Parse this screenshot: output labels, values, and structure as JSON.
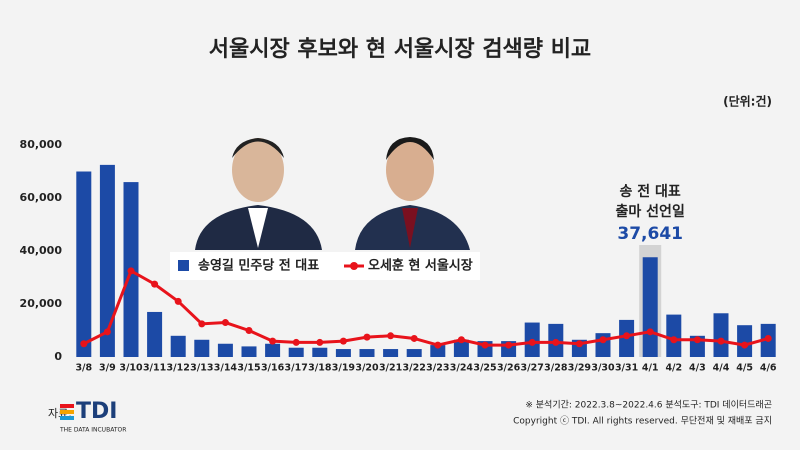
{
  "chart_data": {
    "type": "bar-line",
    "title": "서울시장 후보와 현 서울시장 검색량 비교",
    "unit": "(단위:건)",
    "categories": [
      "3/8",
      "3/9",
      "3/10",
      "3/11",
      "3/12",
      "3/13",
      "3/14",
      "3/15",
      "3/16",
      "3/17",
      "3/18",
      "3/19",
      "3/20",
      "3/21",
      "3/22",
      "3/23",
      "3/24",
      "3/25",
      "3/26",
      "3/27",
      "3/28",
      "3/29",
      "3/30",
      "3/31",
      "4/1",
      "4/2",
      "4/3",
      "4/4",
      "4/5",
      "4/6"
    ],
    "series": [
      {
        "name": "송영길 민주당 전 대표",
        "type": "bar",
        "color": "#1c4aa6",
        "values": [
          70000,
          72500,
          66000,
          17000,
          8000,
          6500,
          5000,
          4000,
          5000,
          3500,
          3500,
          3000,
          3000,
          3000,
          3000,
          4500,
          6500,
          6000,
          6000,
          13000,
          12500,
          6500,
          9000,
          14000,
          37641,
          16000,
          8000,
          16500,
          12000,
          12500
        ]
      },
      {
        "name": "오세훈 현 서울시장",
        "type": "line",
        "color": "#e8131b",
        "values": [
          5000,
          9500,
          32500,
          27500,
          21000,
          12500,
          13000,
          10000,
          6000,
          5500,
          5500,
          6000,
          7500,
          8000,
          7000,
          4500,
          6500,
          4500,
          4500,
          5500,
          5500,
          5000,
          6500,
          8000,
          9500,
          6500,
          6500,
          6000,
          4500,
          7000
        ]
      }
    ],
    "ylim": [
      0,
      80000
    ],
    "yticks": [
      0,
      {
        "value": 20000,
        "label": "20,000"
      },
      {
        "value": 40000,
        "label": "40,000"
      },
      {
        "value": 60000,
        "label": "60,000"
      },
      {
        "value": 80000,
        "label": "80,000"
      }
    ],
    "annotation": {
      "lines": [
        "송 전 대표",
        "출마 선언일"
      ],
      "category": "4/1",
      "label": "37,641"
    },
    "source_label": "자료:",
    "logo": "TDI",
    "logo_sub": "THE DATA INCUBATOR",
    "footnotes": [
      "※ 분석기간: 2022.3.8~2022.4.6   분석도구: TDI 데이터드래곤",
      "Copyright ⓒ TDI. All rights reserved. 무단전재 및 재배포 금지"
    ]
  }
}
